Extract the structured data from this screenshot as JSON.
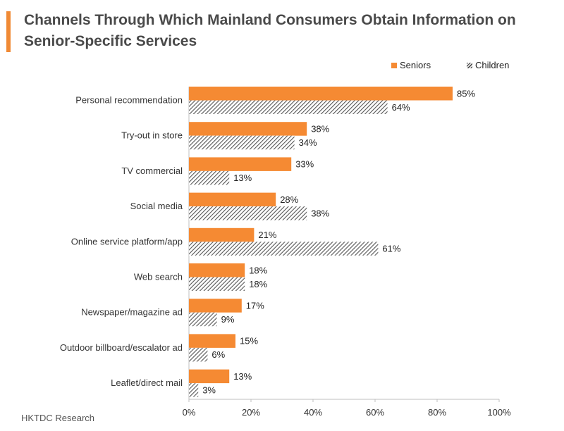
{
  "title": "Channels Through Which Mainland Consumers Obtain Information on Senior-Specific Services",
  "source": "HKTDC Research",
  "colors": {
    "accent": "#f08a35",
    "seniors": "#f58a33",
    "children_hatch": "#555555"
  },
  "chart_data": {
    "type": "bar",
    "orientation": "horizontal",
    "categories": [
      "Personal recommendation",
      "Try-out in store",
      "TV commercial",
      "Social media",
      "Online service platform/app",
      "Web search",
      "Newspaper/magazine ad",
      "Outdoor billboard/escalator ad",
      "Leaflet/direct mail"
    ],
    "series": [
      {
        "name": "Seniors",
        "values": [
          85,
          38,
          33,
          28,
          21,
          18,
          17,
          15,
          13
        ]
      },
      {
        "name": "Children",
        "values": [
          64,
          34,
          13,
          38,
          61,
          18,
          9,
          6,
          3
        ]
      }
    ],
    "value_suffix": "%",
    "xlim": [
      0,
      100
    ],
    "xticks": [
      0,
      20,
      40,
      60,
      80,
      100
    ],
    "xtick_labels": [
      "0%",
      "20%",
      "40%",
      "60%",
      "80%",
      "100%"
    ],
    "legend_position": "top-right",
    "grid": false
  }
}
